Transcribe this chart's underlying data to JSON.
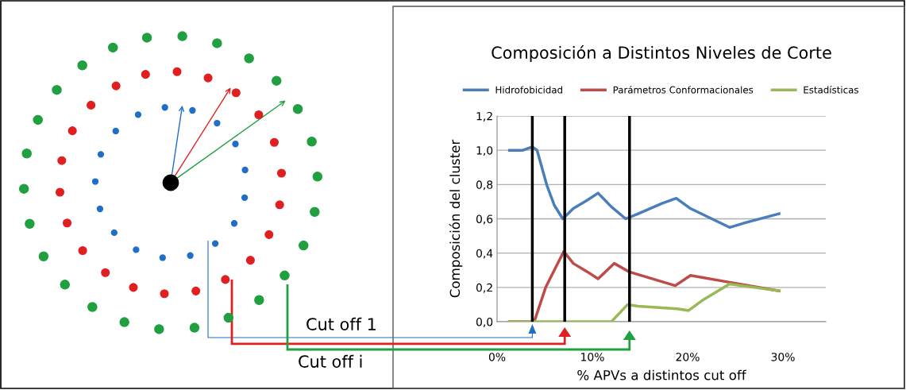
{
  "chart_data": {
    "type": "line",
    "title": "Composición a Distintos Niveles de Corte",
    "xlabel": "% APVs a distintos cut off",
    "ylabel": "Composición del cluster",
    "xlim": [
      0,
      34.5
    ],
    "xticks": [
      {
        "value": 0,
        "label": "0%"
      },
      {
        "value": 10,
        "label": "10%"
      },
      {
        "value": 20,
        "label": "20%"
      },
      {
        "value": 30,
        "label": "30%"
      }
    ],
    "ylim": [
      0,
      1.2
    ],
    "yticks": [
      {
        "value": 0,
        "label": "0,0"
      },
      {
        "value": 0.2,
        "label": "0,2"
      },
      {
        "value": 0.4,
        "label": "0,4"
      },
      {
        "value": 0.6,
        "label": "0,6"
      },
      {
        "value": 0.8,
        "label": "0,8"
      },
      {
        "value": 1.0,
        "label": "1,0"
      },
      {
        "value": 1.2,
        "label": "1,2"
      }
    ],
    "grid": "y",
    "legend": "top",
    "line_style": "solid",
    "marker": "none",
    "series": [
      {
        "name": "Hidrofobicidad",
        "color": "#4a7ebb",
        "x": [
          1.3,
          2.7,
          3.7,
          4.2,
          5.2,
          6.0,
          6.9,
          8.0,
          9.5,
          10.6,
          12.0,
          13.5,
          14.8,
          17.3,
          18.8,
          20.3,
          24.4,
          26.2,
          29.6
        ],
        "values": [
          1.0,
          1.0,
          1.02,
          1.0,
          0.8,
          0.68,
          0.6,
          0.66,
          0.71,
          0.75,
          0.67,
          0.6,
          0.63,
          0.69,
          0.72,
          0.66,
          0.55,
          0.58,
          0.63
        ]
      },
      {
        "name": "Parámetros Conformacionales",
        "color": "#be4b48",
        "x": [
          1.3,
          3.9,
          5.1,
          7.0,
          8.0,
          9.5,
          10.6,
          12.3,
          13.9,
          18.7,
          20.3,
          24.4,
          29.6
        ],
        "values": [
          0,
          0,
          0.2,
          0.41,
          0.34,
          0.29,
          0.25,
          0.34,
          0.29,
          0.21,
          0.27,
          0.23,
          0.18
        ]
      },
      {
        "name": "Estadísticas",
        "color": "#98b954",
        "x": [
          1.3,
          10.9,
          12.0,
          13.7,
          14.8,
          18.9,
          20.1,
          21.7,
          24.4,
          29.6
        ],
        "values": [
          0,
          0,
          0,
          0.1,
          0.09,
          0.075,
          0.065,
          0.13,
          0.22,
          0.18
        ]
      }
    ],
    "ref_lines": [
      {
        "axis": "x",
        "value": 3.7,
        "color": "#000000"
      },
      {
        "axis": "x",
        "value": 7.1,
        "color": "#000000"
      },
      {
        "axis": "x",
        "value": 13.9,
        "color": "#000000"
      }
    ],
    "annotations": [
      "Cut off 1",
      "Cut off i"
    ]
  }
}
